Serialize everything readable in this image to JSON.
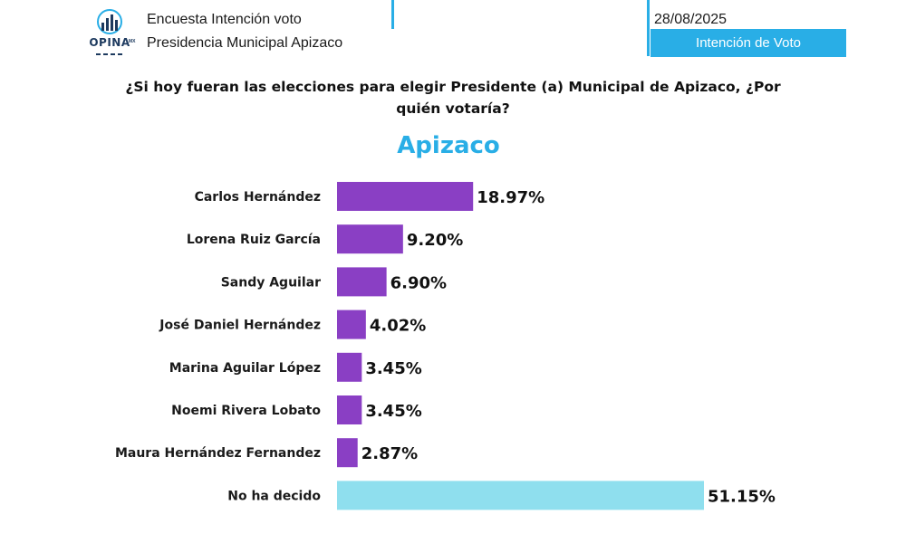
{
  "header": {
    "logo_text": "OPINA",
    "logo_suffix": "MX",
    "line1": "Encuesta Intención voto",
    "line2": "Presidencia Municipal Apizaco",
    "date": "28/08/2025",
    "tag": "Intención de Voto"
  },
  "question": "¿Si hoy fueran las elecciones para elegir Presidente (a) Municipal de Apizaco, ¿Por quién votaría?",
  "colors": {
    "accent": "#29aee6",
    "candidate_bar": "#8a3fc4",
    "undecided_bar": "#8fdfee"
  },
  "chart_data": {
    "type": "bar",
    "orientation": "horizontal",
    "title": "Apizaco",
    "categories": [
      "Carlos Hernández",
      "Lorena Ruiz García",
      "Sandy Aguilar",
      "José Daniel Hernández",
      "Marina Aguilar López",
      "Noemi Rivera Lobato",
      "Maura Hernández Fernandez",
      "No ha decido"
    ],
    "values": [
      18.97,
      9.2,
      6.9,
      4.02,
      3.45,
      3.45,
      2.87,
      51.15
    ],
    "value_labels": [
      "18.97%",
      "9.20%",
      "6.90%",
      "4.02%",
      "3.45%",
      "3.45%",
      "2.87%",
      "51.15%"
    ],
    "unit": "%",
    "xlim": [
      0,
      51.15
    ],
    "grid": false,
    "legend": "none"
  }
}
